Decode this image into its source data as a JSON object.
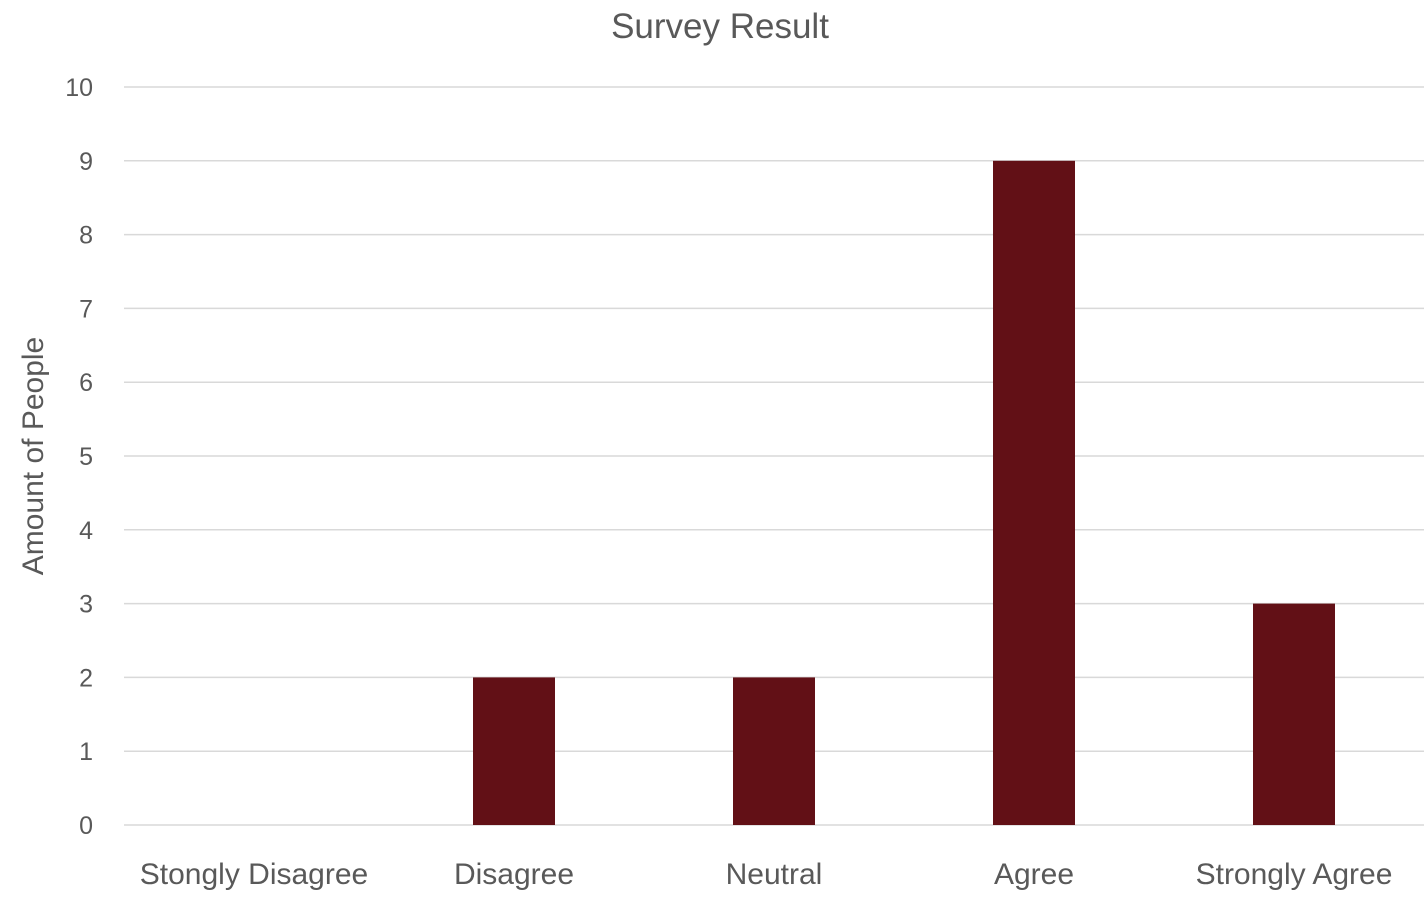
{
  "chart_data": {
    "type": "bar",
    "title": "Survey Result",
    "xlabel": "",
    "ylabel": "Amount of People",
    "categories": [
      "Stongly Disagree",
      "Disagree",
      "Neutral",
      "Agree",
      "Strongly Agree"
    ],
    "values": [
      0,
      2,
      2,
      9,
      3
    ],
    "ylim": [
      0,
      10
    ],
    "y_ticks": [
      "0",
      "1",
      "2",
      "3",
      "4",
      "5",
      "6",
      "7",
      "8",
      "9",
      "10"
    ],
    "grid": true,
    "legend": "none",
    "colors": {
      "bar": "#621016",
      "grid": "#d9d9d9",
      "text": "#595959"
    }
  }
}
